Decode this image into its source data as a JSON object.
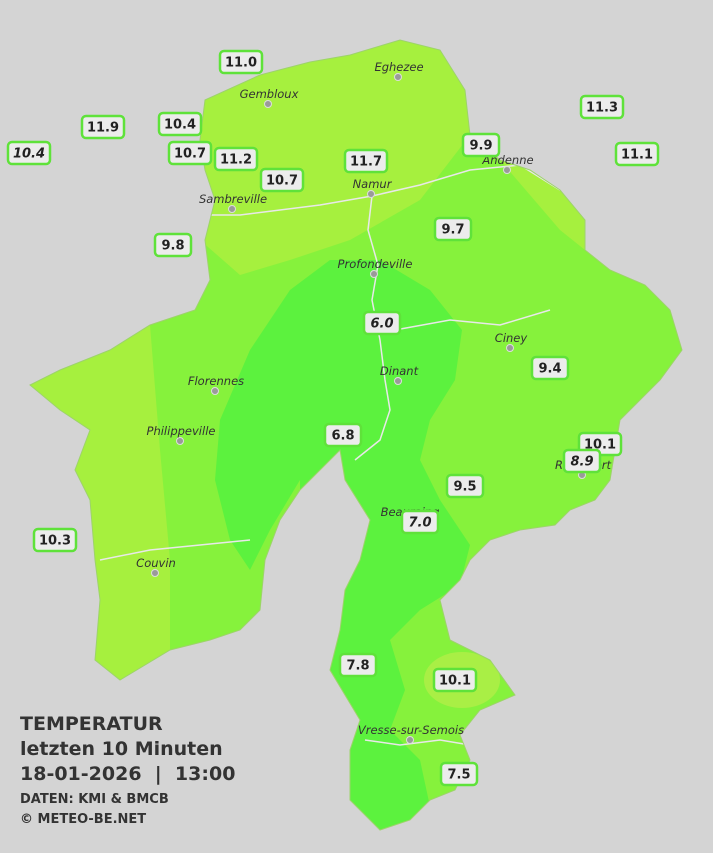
{
  "legend": {
    "title": "TEMPERATUR",
    "subtitle": "letzten 10 Minuten",
    "datetime": "18-01-2026  |  13:00",
    "source": "DATEN: KMI & BMCB",
    "copyright": "© METEO-BE.NET"
  },
  "towns": [
    "Eghezee",
    "Gembloux",
    "Andenne",
    "Namur",
    "Sambreville",
    "Profondeville",
    "Ciney",
    "Florennes",
    "Dinant",
    "Philippeville",
    "Rochefort",
    "Beauraing",
    "Couvin",
    "Vresse-sur-Semois"
  ],
  "stations": [
    {
      "label": "11.0",
      "italic": false
    },
    {
      "label": "11.9",
      "italic": false
    },
    {
      "label": "10.4",
      "italic": true
    },
    {
      "label": "10.4",
      "italic": false
    },
    {
      "label": "10.7",
      "italic": false
    },
    {
      "label": "11.2",
      "italic": false
    },
    {
      "label": "10.7",
      "italic": false
    },
    {
      "label": "11.7",
      "italic": false
    },
    {
      "label": "9.9",
      "italic": false
    },
    {
      "label": "11.3",
      "italic": false
    },
    {
      "label": "11.1",
      "italic": false
    },
    {
      "label": "9.7",
      "italic": false
    },
    {
      "label": "9.8",
      "italic": false
    },
    {
      "label": "6.0",
      "italic": true
    },
    {
      "label": "9.4",
      "italic": false
    },
    {
      "label": "6.8",
      "italic": false
    },
    {
      "label": "10.1",
      "italic": false
    },
    {
      "label": "8.9",
      "italic": true
    },
    {
      "label": "9.5",
      "italic": false
    },
    {
      "label": "7.0",
      "italic": true
    },
    {
      "label": "10.3",
      "italic": false
    },
    {
      "label": "7.8",
      "italic": false
    },
    {
      "label": "10.1",
      "italic": false
    },
    {
      "label": "7.5",
      "italic": false
    }
  ]
}
